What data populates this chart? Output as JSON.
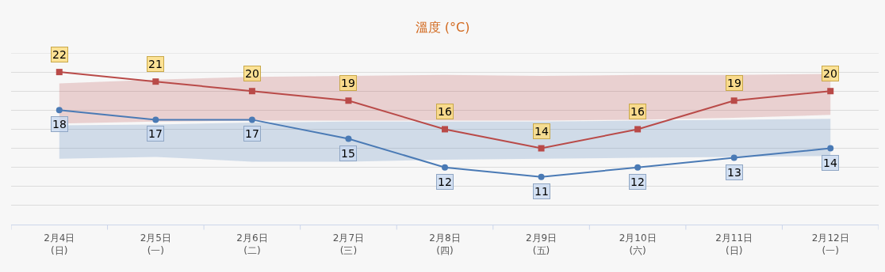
{
  "chart_data": {
    "type": "line",
    "title": "溫度 (°C)",
    "categories": [
      "2月4日\n(日)",
      "2月5日\n(一)",
      "2月6日\n(二)",
      "2月7日\n(三)",
      "2月8日\n(四)",
      "2月9日\n(五)",
      "2月10日\n(六)",
      "2月11日\n(日)",
      "2月12日\n(一)"
    ],
    "series": [
      {
        "color": "#b94a48",
        "marker": "square",
        "values": [
          22,
          21,
          20,
          19,
          16,
          14,
          16,
          19,
          20
        ],
        "lower": [
          16.6,
          16.8,
          16.9,
          16.9,
          16.9,
          16.9,
          17.0,
          17.2,
          17.5
        ],
        "upper": [
          20.8,
          21.2,
          21.5,
          21.6,
          21.7,
          21.6,
          21.7,
          21.7,
          21.8
        ]
      },
      {
        "color": "#4a7ab5",
        "marker": "circle",
        "values": [
          18,
          17,
          17,
          15,
          12,
          11,
          12,
          13,
          14
        ],
        "lower": [
          12.9,
          13.1,
          12.6,
          12.6,
          12.8,
          12.9,
          13.0,
          13.1,
          13.2
        ],
        "upper": [
          16.4,
          16.5,
          16.7,
          16.8,
          16.8,
          16.8,
          16.9,
          17.0,
          17.1
        ]
      }
    ],
    "ylim": [
      6,
      24
    ],
    "yticks": [
      {
        "value": 8,
        "label": null
      },
      {
        "value": 10,
        "label": null
      },
      {
        "value": 12,
        "label": null
      },
      {
        "value": 14,
        "label": null
      },
      {
        "value": 16,
        "label": null
      },
      {
        "value": 18,
        "label": null
      },
      {
        "value": 20,
        "label": null
      },
      {
        "value": 22,
        "label": null
      }
    ],
    "grid": "y",
    "tick_labels": "x",
    "data_labels": true,
    "line_style": "solid"
  }
}
